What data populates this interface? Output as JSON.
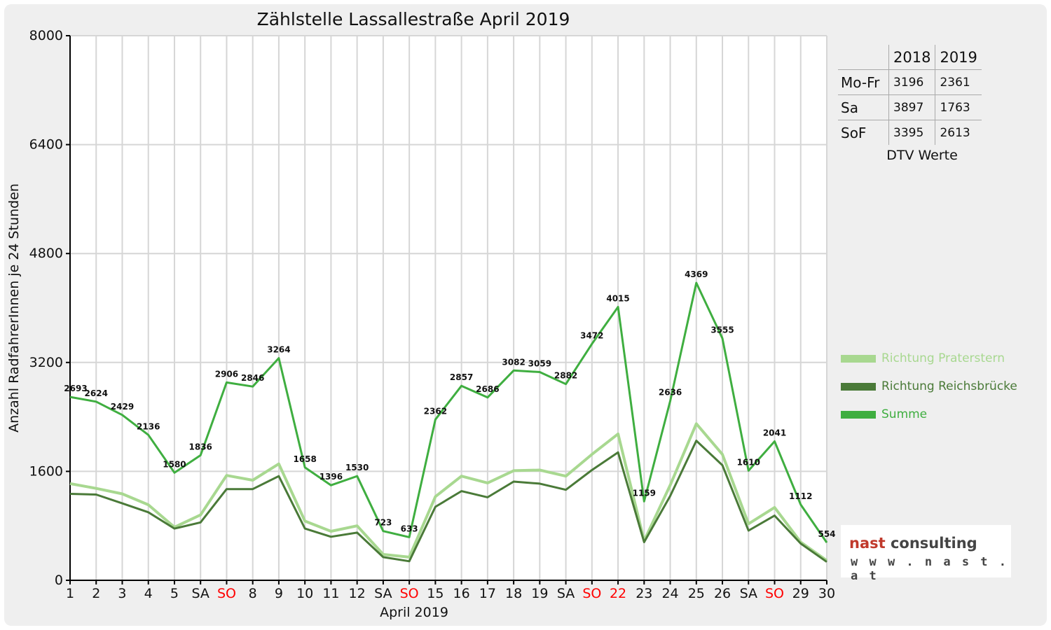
{
  "chart_data": {
    "type": "line",
    "title": "Zählstelle Lassallestraße April 2019",
    "xlabel": "April 2019",
    "ylabel": "Anzahl RadfahrerInnen je 24 Stunden",
    "ylim": [
      0,
      8000
    ],
    "yticks": [
      0,
      1600,
      3200,
      4800,
      6400,
      8000
    ],
    "categories": [
      "1",
      "2",
      "3",
      "4",
      "5",
      "SA",
      "SO",
      "8",
      "9",
      "10",
      "11",
      "12",
      "SA",
      "SO",
      "15",
      "16",
      "17",
      "18",
      "19",
      "SA",
      "SO",
      "22",
      "23",
      "24",
      "25",
      "26",
      "SA",
      "SO",
      "29",
      "30"
    ],
    "red_categories": [
      6,
      13,
      20,
      21,
      27
    ],
    "grid": true,
    "legend_position": "right",
    "series": [
      {
        "name": "Richtung Praterstern",
        "color": "#a8d890",
        "width": 4,
        "values": [
          1420,
          1350,
          1270,
          1110,
          780,
          960,
          1540,
          1470,
          1710,
          870,
          720,
          800,
          380,
          340,
          1230,
          1530,
          1430,
          1610,
          1620,
          1530,
          1850,
          2150,
          580,
          1400,
          2300,
          1850,
          830,
          1070,
          560,
          290
        ]
      },
      {
        "name": "Richtung Reichsbrücke",
        "color": "#4a7a38",
        "width": 3,
        "values": [
          1270,
          1260,
          1130,
          1000,
          760,
          850,
          1340,
          1340,
          1530,
          760,
          640,
          700,
          340,
          280,
          1080,
          1310,
          1220,
          1450,
          1420,
          1330,
          1620,
          1880,
          560,
          1240,
          2050,
          1690,
          730,
          950,
          540,
          270
        ]
      },
      {
        "name": "Summe",
        "color": "#3fae40",
        "width": 3,
        "values": [
          2693,
          2624,
          2429,
          2136,
          1580,
          1836,
          2906,
          2846,
          3264,
          1658,
          1396,
          1530,
          723,
          633,
          2362,
          2857,
          2686,
          3082,
          3059,
          2882,
          3472,
          4015,
          1159,
          2636,
          4369,
          3555,
          1610,
          2041,
          1112,
          554
        ]
      }
    ],
    "data_labels": [
      "2693",
      "2624",
      "2429",
      "2136",
      "1580",
      "1836",
      "2906",
      "2846",
      "3264",
      "1658",
      "1396",
      "1530",
      "723",
      "633",
      "2362",
      "2857",
      "2686",
      "3082",
      "3059",
      "2882",
      "3472",
      "4015",
      "1159",
      "2636",
      "4369",
      "3555",
      "1610",
      "2041",
      "1112",
      "554"
    ]
  },
  "dtv_table": {
    "headers": [
      "",
      "2018",
      "2019"
    ],
    "rows": [
      {
        "label": "Mo-Fr",
        "v2018": "3196",
        "v2019": "2361"
      },
      {
        "label": "Sa",
        "v2018": "3897",
        "v2019": "1763"
      },
      {
        "label": "SoF",
        "v2018": "3395",
        "v2019": "2613"
      }
    ],
    "caption": "DTV Werte"
  },
  "logo": {
    "brand_1": "nast",
    "brand_2": " consulting",
    "url": "w w w . n a s t . a t"
  },
  "colors": {
    "background": "#efefef",
    "axis": "#000000",
    "grid": "#d6d6d6",
    "weekend_label": "#ff0000",
    "label_text": "#111111"
  }
}
